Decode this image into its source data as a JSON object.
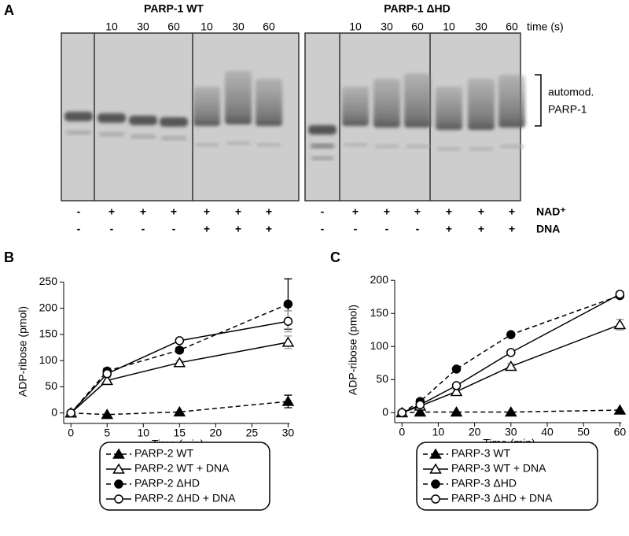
{
  "gel": {
    "panel": "A",
    "gels": [
      {
        "title": "PARP-1 WT",
        "times": [
          10,
          30,
          60,
          10,
          30,
          60
        ]
      },
      {
        "title": "PARP-1 ΔHD",
        "times": [
          10,
          30,
          60,
          10,
          30,
          60
        ]
      }
    ],
    "time_label": "time (s)",
    "bracket_label": [
      "automod.",
      "PARP-1"
    ],
    "rows": [
      {
        "label": "NAD⁺",
        "signs": [
          "-",
          "+",
          "+",
          "+",
          "+",
          "+",
          "+",
          "-",
          "+",
          "+",
          "+",
          "+",
          "+",
          "+"
        ]
      },
      {
        "label": "DNA",
        "signs": [
          "-",
          "-",
          "-",
          "-",
          "+",
          "+",
          "+",
          "-",
          "-",
          "-",
          "-",
          "+",
          "+",
          "+"
        ]
      }
    ]
  },
  "chart_data": [
    {
      "type": "line",
      "panel": "B",
      "xlabel": "Time (min)",
      "ylabel": "ADP-ribose (pmol)",
      "x": [
        0,
        5,
        15,
        30
      ],
      "xlim": [
        -1,
        30.5
      ],
      "ylim": [
        -20,
        255
      ],
      "xticks": [
        0,
        5,
        10,
        15,
        20,
        25,
        30
      ],
      "yticks": [
        0,
        50,
        100,
        150,
        200,
        250
      ],
      "series": [
        {
          "name": "PARP-2 WT",
          "color": "#000000",
          "marker": "triangle",
          "filled": true,
          "dashed": true,
          "error_color": "#000000",
          "values": [
            0,
            -3,
            2,
            22
          ],
          "errors": [
            0,
            0,
            0,
            12
          ]
        },
        {
          "name": "PARP-2 WT + DNA",
          "color": "#000000",
          "marker": "triangle",
          "filled": false,
          "dashed": false,
          "error_color": "#999999",
          "values": [
            0,
            62,
            96,
            135
          ],
          "errors": [
            0,
            8,
            4,
            12
          ]
        },
        {
          "name": "PARP-2 ΔHD",
          "color": "#000000",
          "marker": "circle",
          "filled": true,
          "dashed": true,
          "error_color": "#000000",
          "values": [
            0,
            80,
            120,
            208
          ],
          "errors": [
            0,
            5,
            5,
            48
          ]
        },
        {
          "name": "PARP-2 ΔHD + DNA",
          "color": "#000000",
          "marker": "circle",
          "filled": false,
          "dashed": false,
          "error_color": "#999999",
          "values": [
            0,
            75,
            138,
            175
          ],
          "errors": [
            0,
            7,
            4,
            20
          ]
        }
      ]
    },
    {
      "type": "line",
      "panel": "C",
      "xlabel": "Time (min)",
      "ylabel": "ADP-ribose (pmol)",
      "x": [
        0,
        5,
        15,
        30,
        60
      ],
      "xlim": [
        -2,
        61
      ],
      "ylim": [
        -15,
        205
      ],
      "xticks": [
        0,
        10,
        20,
        30,
        40,
        50,
        60
      ],
      "yticks": [
        0,
        50,
        100,
        150,
        200
      ],
      "series": [
        {
          "name": "PARP-3 WT",
          "color": "#000000",
          "marker": "triangle",
          "filled": true,
          "dashed": true,
          "error_color": "#000000",
          "values": [
            0,
            1,
            1,
            1,
            4
          ],
          "errors": [
            0,
            0,
            0,
            0,
            0
          ]
        },
        {
          "name": "PARP-3 WT + DNA",
          "color": "#000000",
          "marker": "triangle",
          "filled": false,
          "dashed": false,
          "error_color": "#999999",
          "values": [
            0,
            10,
            32,
            70,
            133
          ],
          "errors": [
            0,
            2,
            3,
            4,
            8
          ]
        },
        {
          "name": "PARP-3 ΔHD",
          "color": "#000000",
          "marker": "circle",
          "filled": true,
          "dashed": true,
          "error_color": "#000000",
          "values": [
            0,
            17,
            66,
            118,
            177
          ],
          "errors": [
            0,
            3,
            3,
            3,
            3
          ]
        },
        {
          "name": "PARP-3 ΔHD + DNA",
          "color": "#000000",
          "marker": "circle",
          "filled": false,
          "dashed": false,
          "error_color": "#999999",
          "values": [
            0,
            12,
            41,
            91,
            179
          ],
          "errors": [
            0,
            2,
            2,
            3,
            4
          ]
        }
      ]
    }
  ]
}
